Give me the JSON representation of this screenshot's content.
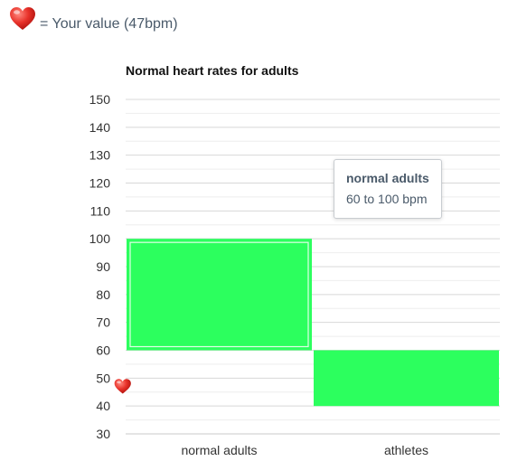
{
  "legend": {
    "icon": "heart-icon",
    "text": "= Your value (47bpm)"
  },
  "tooltip": {
    "title": "normal adults",
    "text": "60 to 100 bpm"
  },
  "colors": {
    "bar": "#2cff5e",
    "heart": "#e8322a",
    "grid": "#d8d8d8",
    "text": "#4a5a6a"
  },
  "chart_data": {
    "type": "bar",
    "title": "Normal heart rates for adults",
    "categories": [
      "normal adults",
      "athletes"
    ],
    "ranges": [
      {
        "category": "normal adults",
        "low": 60,
        "high": 100,
        "highlighted": true
      },
      {
        "category": "athletes",
        "low": 40,
        "high": 60,
        "highlighted": false
      }
    ],
    "ylim": [
      30,
      150
    ],
    "yticks": [
      30,
      40,
      50,
      60,
      70,
      80,
      90,
      100,
      110,
      120,
      130,
      140,
      150
    ],
    "grid": true,
    "marker": {
      "label": "Your value",
      "value": 47,
      "icon": "heart-icon"
    }
  }
}
